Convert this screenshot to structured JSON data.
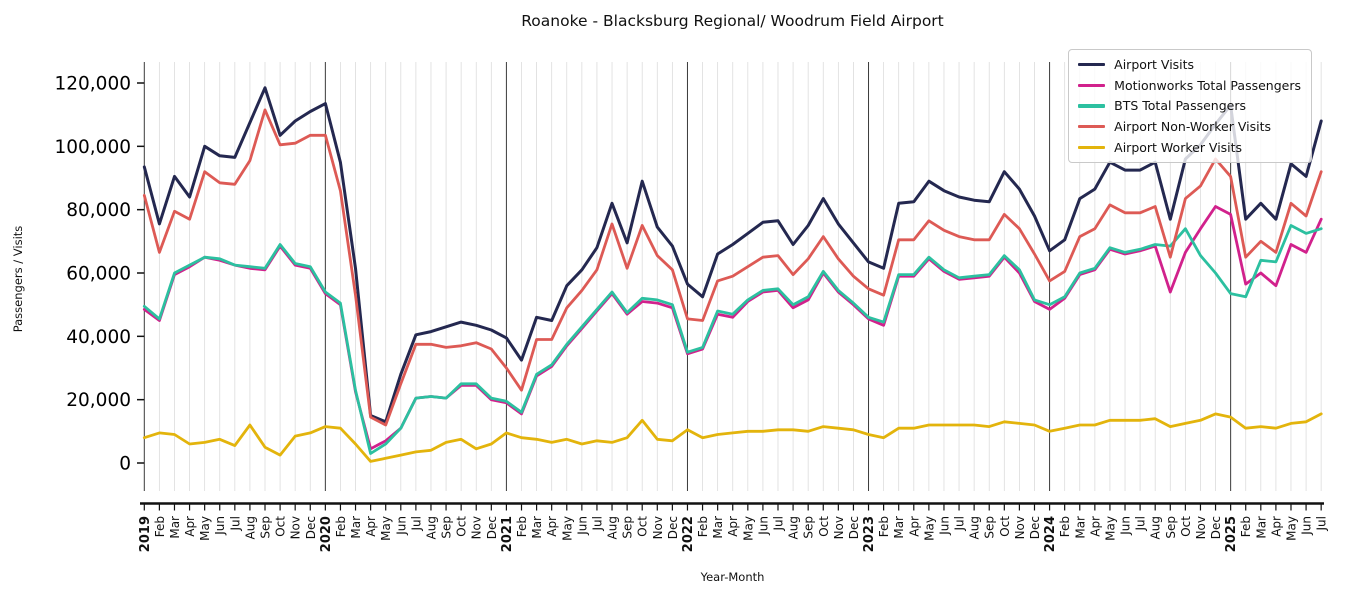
{
  "chart_data": {
    "type": "line",
    "title": "Roanoke - Blacksburg Regional/ Woodrum Field Airport",
    "xlabel": "Year-Month",
    "ylabel": "Passengers / Visits",
    "ylim": [
      0,
      120000
    ],
    "grid": "vertical gridline per month; darker vertical line at each January",
    "legend_position": "upper right",
    "yticks": [
      0,
      20000,
      40000,
      60000,
      80000,
      100000,
      120000
    ],
    "ytick_labels": [
      "0",
      "20,000",
      "40,000",
      "60,000",
      "80,000",
      "100,000",
      "120,000"
    ],
    "x_labels": [
      "2019",
      "Feb",
      "Mar",
      "Apr",
      "May",
      "Jun",
      "Jul",
      "Aug",
      "Sep",
      "Oct",
      "Nov",
      "Dec",
      "2020",
      "Feb",
      "Mar",
      "Apr",
      "May",
      "Jun",
      "Jul",
      "Aug",
      "Sep",
      "Oct",
      "Nov",
      "Dec",
      "2021",
      "Feb",
      "Mar",
      "Apr",
      "May",
      "Jun",
      "Jul",
      "Aug",
      "Sep",
      "Oct",
      "Nov",
      "Dec",
      "2022",
      "Feb",
      "Mar",
      "Apr",
      "May",
      "Jun",
      "Jul",
      "Aug",
      "Sep",
      "Oct",
      "Nov",
      "Dec",
      "2023",
      "Feb",
      "Mar",
      "Apr",
      "May",
      "Jun",
      "Jul",
      "Aug",
      "Sep",
      "Oct",
      "Nov",
      "Dec",
      "2024",
      "Feb",
      "Mar",
      "Apr",
      "May",
      "Jun",
      "Jul",
      "Aug",
      "Sep",
      "Oct",
      "Nov",
      "Dec",
      "2025",
      "Feb",
      "Mar",
      "Apr",
      "May",
      "Jun",
      "Jul"
    ],
    "series": [
      {
        "name": "Airport Visits",
        "color": "#242850",
        "line_width": 3,
        "values": [
          93500,
          75500,
          90500,
          84000,
          100000,
          97000,
          96500,
          107500,
          118500,
          103500,
          108000,
          111000,
          113500,
          95000,
          61500,
          15000,
          13000,
          28000,
          40500,
          41500,
          43000,
          44500,
          43500,
          42000,
          39500,
          32500,
          46000,
          45000,
          56000,
          61000,
          68000,
          82000,
          69500,
          89000,
          74500,
          68500,
          56500,
          52500,
          66000,
          69000,
          72500,
          76000,
          76500,
          69000,
          75000,
          83500,
          75500,
          69500,
          63500,
          61500,
          82000,
          82500,
          89000,
          86000,
          84000,
          83000,
          82500,
          92000,
          86500,
          78000,
          67000,
          70500,
          83500,
          86500,
          95000,
          92500,
          92500,
          95000,
          77000,
          96000,
          100500,
          107000,
          113000,
          77000,
          82000,
          77000,
          94500,
          90500,
          108000
        ]
      },
      {
        "name": "Motionworks Total Passengers",
        "color": "#d1218c",
        "line_width": 2.8,
        "values": [
          48500,
          45000,
          59500,
          62000,
          65000,
          64000,
          62500,
          61500,
          61000,
          68500,
          62500,
          61500,
          53500,
          50000,
          22500,
          4500,
          7000,
          11000,
          20500,
          21000,
          20500,
          24500,
          24500,
          20000,
          19000,
          15500,
          27500,
          30500,
          37000,
          42500,
          48000,
          53500,
          47000,
          51000,
          50500,
          49000,
          34500,
          36000,
          47000,
          46000,
          51000,
          54000,
          54500,
          49000,
          51500,
          60000,
          54000,
          50000,
          45500,
          43500,
          59000,
          59000,
          64500,
          60500,
          58000,
          58500,
          59000,
          65000,
          60000,
          51000,
          48500,
          52000,
          59500,
          61000,
          67500,
          66000,
          67000,
          68500,
          54000,
          66500,
          74000,
          81000,
          78500,
          56500,
          60000,
          56000,
          69000,
          66500,
          77000
        ]
      },
      {
        "name": "BTS Total Passengers",
        "color": "#2cc0a0",
        "line_width": 2.8,
        "values": [
          49500,
          45500,
          60000,
          62500,
          65000,
          64500,
          62500,
          62000,
          61500,
          69000,
          63000,
          62000,
          54000,
          50500,
          23000,
          3000,
          6000,
          11000,
          20500,
          21000,
          20500,
          25000,
          25000,
          20500,
          19500,
          16000,
          28000,
          31000,
          37500,
          43000,
          48500,
          54000,
          47500,
          52000,
          51500,
          50000,
          35000,
          36500,
          48000,
          47000,
          51500,
          54500,
          55000,
          50000,
          52500,
          60500,
          54500,
          50500,
          46000,
          44500,
          59500,
          59500,
          65000,
          61000,
          58500,
          59000,
          59500,
          65500,
          61000,
          51500,
          50000,
          52500,
          60000,
          61500,
          68000,
          66500,
          67500,
          69000,
          68500,
          74000,
          65500,
          60000,
          53500,
          52500,
          64000,
          63500,
          75000,
          72500,
          74000
        ]
      },
      {
        "name": "Airport Non-Worker Visits",
        "color": "#dd5a55",
        "line_width": 2.8,
        "values": [
          84500,
          66500,
          79500,
          77000,
          92000,
          88500,
          88000,
          95500,
          111500,
          100500,
          101000,
          103500,
          103500,
          86000,
          53000,
          14500,
          12000,
          25000,
          37500,
          37500,
          36500,
          37000,
          38000,
          36000,
          30000,
          23000,
          39000,
          39000,
          49000,
          54500,
          61000,
          75500,
          61500,
          75000,
          65500,
          61000,
          45500,
          45000,
          57500,
          59000,
          62000,
          65000,
          65500,
          59500,
          64500,
          71500,
          64500,
          59000,
          55000,
          53000,
          70500,
          70500,
          76500,
          73500,
          71500,
          70500,
          70500,
          78500,
          74000,
          66000,
          57500,
          60500,
          71500,
          74000,
          81500,
          79000,
          79000,
          81000,
          65000,
          83500,
          87500,
          96000,
          90500,
          65000,
          70000,
          66500,
          82000,
          78000,
          92000
        ]
      },
      {
        "name": "Airport Worker Visits",
        "color": "#e3b40c",
        "line_width": 2.8,
        "values": [
          8000,
          9500,
          9000,
          6000,
          6500,
          7500,
          5500,
          12000,
          5000,
          2500,
          8500,
          9500,
          11500,
          11000,
          6000,
          500,
          1500,
          2500,
          3500,
          4000,
          6500,
          7500,
          4500,
          6000,
          9500,
          8000,
          7500,
          6500,
          7500,
          6000,
          7000,
          6500,
          8000,
          13500,
          7500,
          7000,
          10500,
          8000,
          9000,
          9500,
          10000,
          10000,
          10500,
          10500,
          10000,
          11500,
          11000,
          10500,
          9000,
          8000,
          11000,
          11000,
          12000,
          12000,
          12000,
          12000,
          11500,
          13000,
          12500,
          12000,
          10000,
          11000,
          12000,
          12000,
          13500,
          13500,
          13500,
          14000,
          11500,
          12500,
          13500,
          15500,
          14500,
          11000,
          11500,
          11000,
          12500,
          13000,
          15500
        ]
      }
    ]
  }
}
